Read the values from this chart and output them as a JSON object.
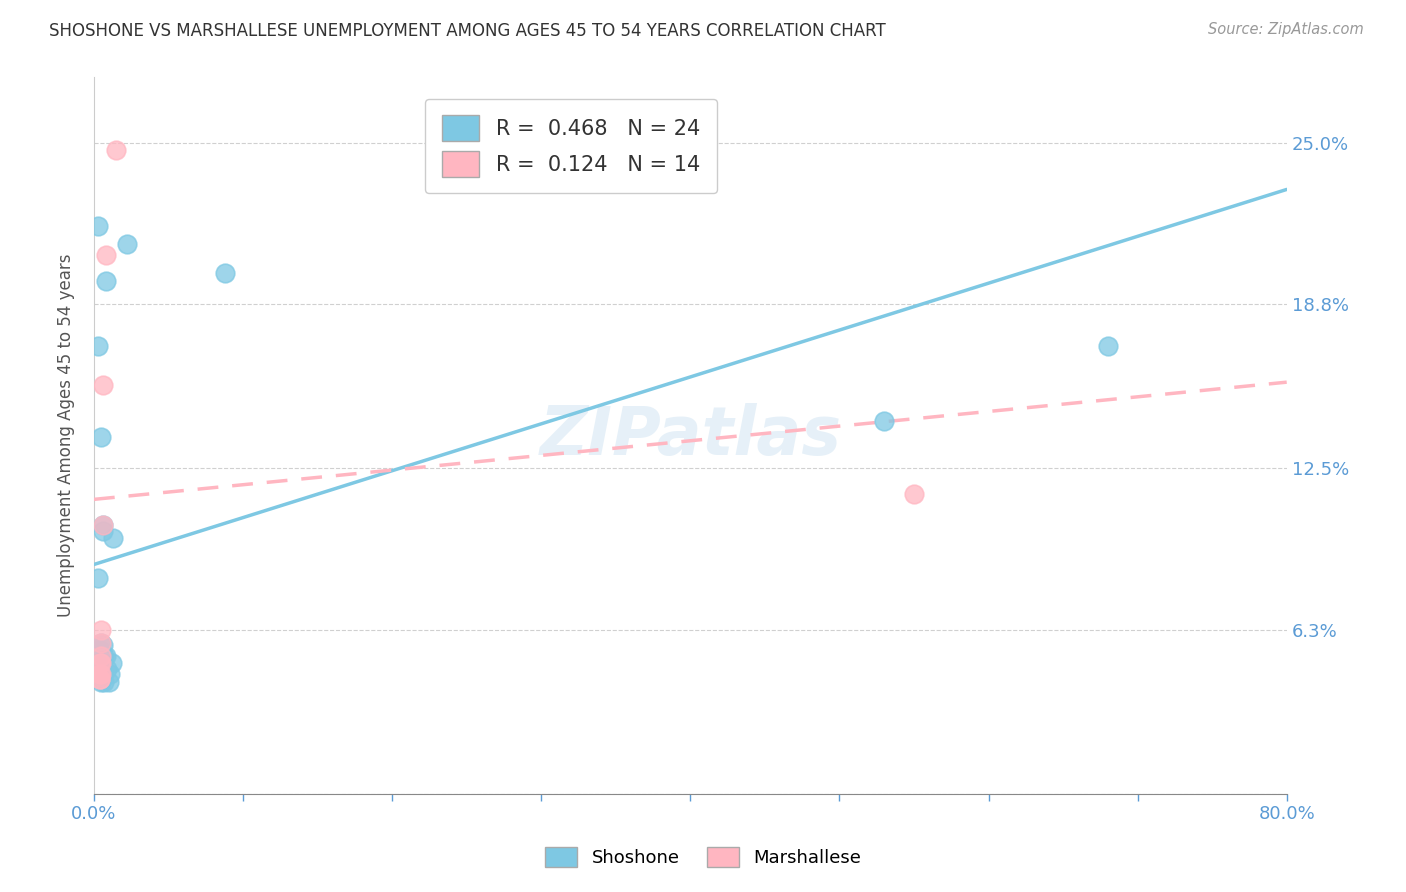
{
  "title": "SHOSHONE VS MARSHALLESE UNEMPLOYMENT AMONG AGES 45 TO 54 YEARS CORRELATION CHART",
  "source": "Source: ZipAtlas.com",
  "ylabel": "Unemployment Among Ages 45 to 54 years",
  "xlim": [
    0.0,
    0.8
  ],
  "ylim": [
    0.0,
    0.275
  ],
  "ytick_values": [
    0.0,
    0.063,
    0.125,
    0.188,
    0.25
  ],
  "ytick_labels": [
    "",
    "6.3%",
    "12.5%",
    "18.8%",
    "25.0%"
  ],
  "shoshone_color": "#7ec8e3",
  "marshallese_color": "#ffb6c1",
  "watermark": "ZIPatlas",
  "shoshone_x": [
    0.003,
    0.008,
    0.022,
    0.003,
    0.006,
    0.005,
    0.007,
    0.008,
    0.009,
    0.01,
    0.011,
    0.012,
    0.013,
    0.005,
    0.006,
    0.004,
    0.005,
    0.006,
    0.007,
    0.088,
    0.005,
    0.53,
    0.68,
    0.003
  ],
  "shoshone_y": [
    0.218,
    0.197,
    0.211,
    0.172,
    0.103,
    0.058,
    0.053,
    0.053,
    0.048,
    0.043,
    0.046,
    0.05,
    0.098,
    0.137,
    0.057,
    0.055,
    0.048,
    0.101,
    0.043,
    0.2,
    0.043,
    0.143,
    0.172,
    0.083
  ],
  "marshallese_x": [
    0.015,
    0.008,
    0.006,
    0.006,
    0.005,
    0.005,
    0.004,
    0.004,
    0.004,
    0.004,
    0.005,
    0.005,
    0.005,
    0.55
  ],
  "marshallese_y": [
    0.247,
    0.207,
    0.157,
    0.103,
    0.053,
    0.05,
    0.05,
    0.046,
    0.044,
    0.044,
    0.046,
    0.058,
    0.063,
    0.115
  ],
  "shoshone_line_x": [
    0.0,
    0.8
  ],
  "shoshone_line_y": [
    0.088,
    0.232
  ],
  "marshallese_line_x": [
    0.0,
    0.8
  ],
  "marshallese_line_y": [
    0.113,
    0.158
  ],
  "background_color": "#ffffff",
  "grid_color": "#d0d0d0",
  "legend_label1": "R =  0.468   N = 24",
  "legend_label2": "R =  0.124   N = 14"
}
